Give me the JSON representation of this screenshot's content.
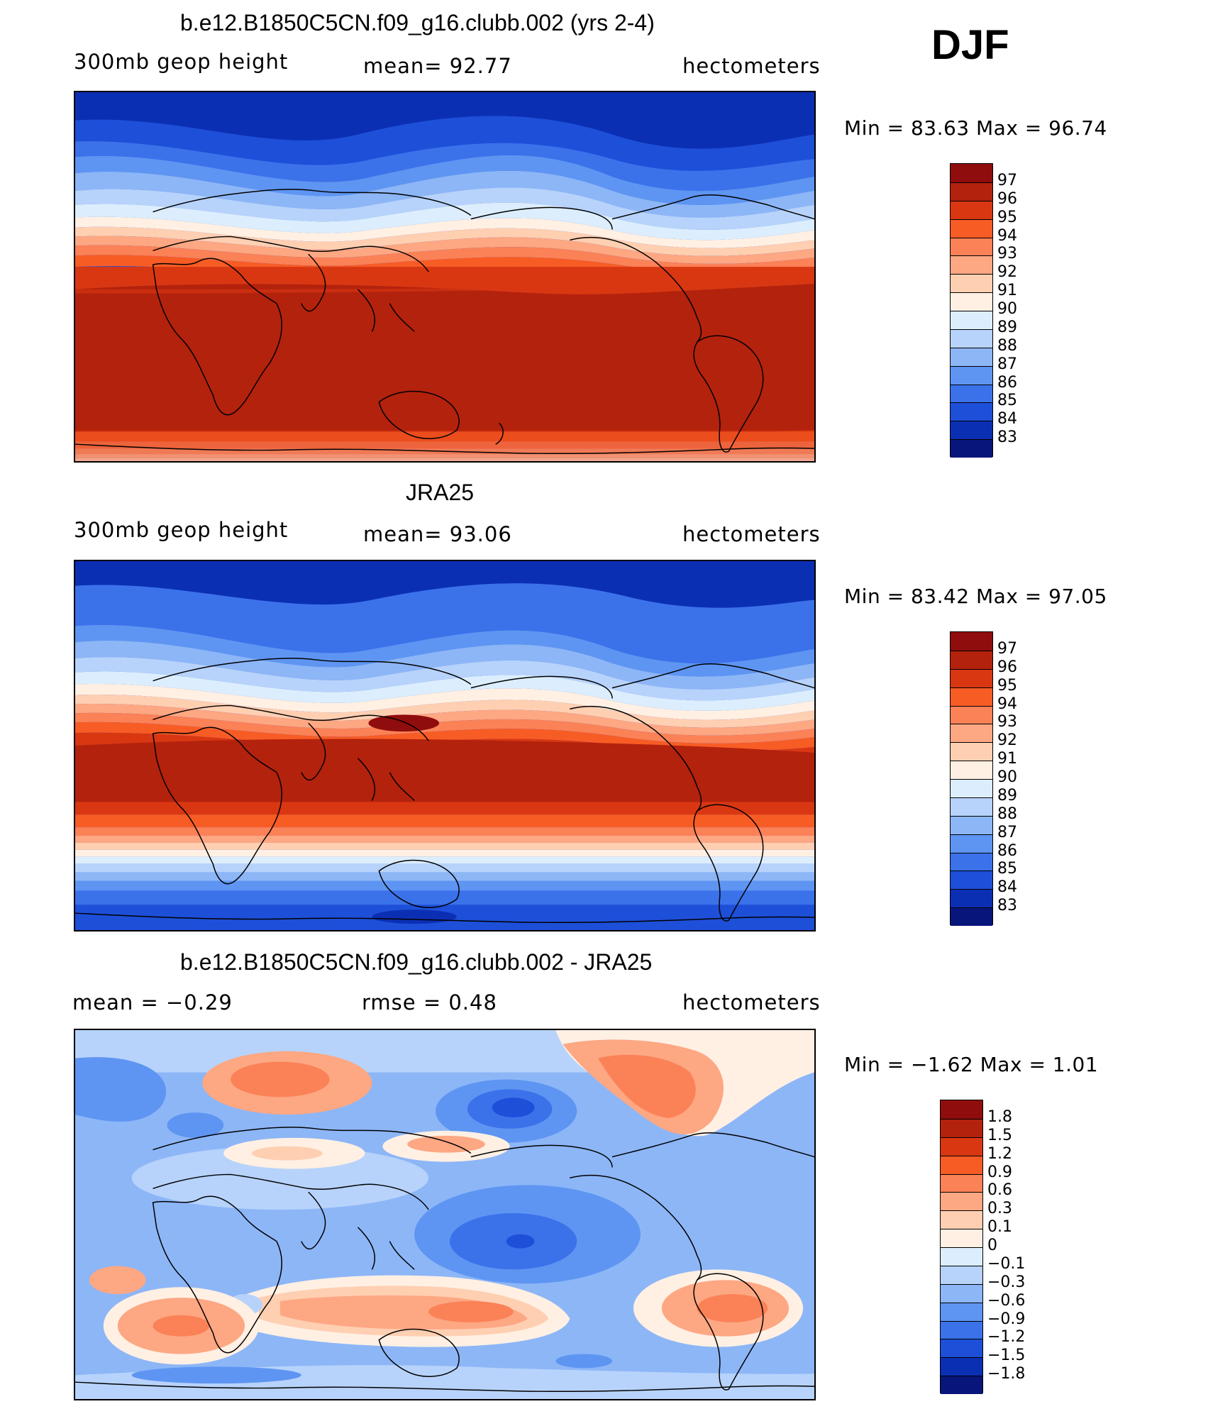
{
  "season": "DJF",
  "panels": [
    {
      "title": "b.e12.B1850C5CN.f09_g16.clubb.002 (yrs 2-4)",
      "left": "300mb geop height",
      "center": "mean=   92.77",
      "right": "hectometers",
      "minmax": "Min =   83.63  Max =   96.74",
      "colorbar": {
        "labels": [
          "97",
          "96",
          "95",
          "94",
          "93",
          "92",
          "91",
          "90",
          "89",
          "88",
          "87",
          "86",
          "85",
          "84",
          "83"
        ],
        "colors": [
          "#8f0d0c",
          "#b3220d",
          "#d93712",
          "#f85c25",
          "#fb8157",
          "#fda783",
          "#ffcfb2",
          "#fff0e3",
          "#dceefd",
          "#b7d3fb",
          "#8db6f7",
          "#5e95f2",
          "#3b72ea",
          "#1e4fd9",
          "#0b2fb3",
          "#08157a"
        ]
      }
    },
    {
      "title": "JRA25",
      "left": "300mb geop height",
      "center": "mean=   93.06",
      "right": "hectometers",
      "minmax": "Min =   83.42  Max =   97.05",
      "colorbar": {
        "labels": [
          "97",
          "96",
          "95",
          "94",
          "93",
          "92",
          "91",
          "90",
          "89",
          "88",
          "87",
          "86",
          "85",
          "84",
          "83"
        ],
        "colors": [
          "#8f0d0c",
          "#b3220d",
          "#d93712",
          "#f85c25",
          "#fb8157",
          "#fda783",
          "#ffcfb2",
          "#fff0e3",
          "#dceefd",
          "#b7d3fb",
          "#8db6f7",
          "#5e95f2",
          "#3b72ea",
          "#1e4fd9",
          "#0b2fb3",
          "#08157a"
        ]
      }
    },
    {
      "title": "b.e12.B1850C5CN.f09_g16.clubb.002 - JRA25",
      "left": "mean =   −0.29",
      "center": "rmse =    0.48",
      "right": "hectometers",
      "minmax": "Min =   −1.62  Max =    1.01",
      "colorbar": {
        "labels": [
          "1.8",
          "1.5",
          "1.2",
          "0.9",
          "0.6",
          "0.3",
          "0.1",
          "0",
          "−0.1",
          "−0.3",
          "−0.6",
          "−0.9",
          "−1.2",
          "−1.5",
          "−1.8"
        ],
        "colors": [
          "#8f0d0c",
          "#b3220d",
          "#d93712",
          "#f85c25",
          "#fb8157",
          "#fda783",
          "#ffcfb2",
          "#fff0e3",
          "#dceefd",
          "#b7d3fb",
          "#8db6f7",
          "#5e95f2",
          "#3b72ea",
          "#1e4fd9",
          "#0b2fb3",
          "#08157a"
        ]
      }
    }
  ]
}
